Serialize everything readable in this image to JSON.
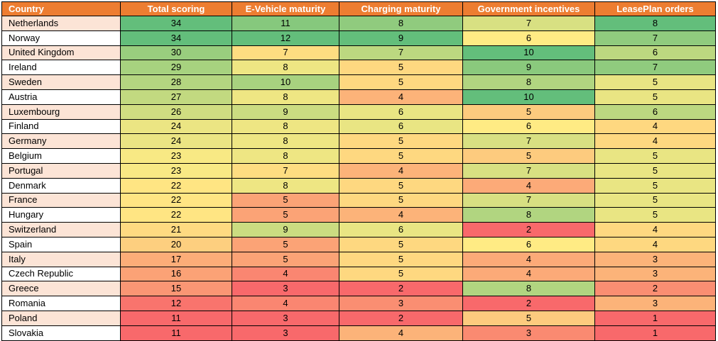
{
  "chart_data": {
    "type": "table",
    "columns": [
      "Country",
      "Total scoring",
      "E-Vehicle maturity",
      "Charging maturity",
      "Government incentives",
      "LeasePlan orders"
    ],
    "rows": [
      [
        "Netherlands",
        34,
        11,
        8,
        7,
        8
      ],
      [
        "Norway",
        34,
        12,
        9,
        6,
        7
      ],
      [
        "United Kingdom",
        30,
        7,
        7,
        10,
        6
      ],
      [
        "Ireland",
        29,
        8,
        5,
        9,
        7
      ],
      [
        "Sweden",
        28,
        10,
        5,
        8,
        5
      ],
      [
        "Austria",
        27,
        8,
        4,
        10,
        5
      ],
      [
        "Luxembourg",
        26,
        9,
        6,
        5,
        6
      ],
      [
        "Finland",
        24,
        8,
        6,
        6,
        4
      ],
      [
        "Germany",
        24,
        8,
        5,
        7,
        4
      ],
      [
        "Belgium",
        23,
        8,
        5,
        5,
        5
      ],
      [
        "Portugal",
        23,
        7,
        4,
        7,
        5
      ],
      [
        "Denmark",
        22,
        8,
        5,
        4,
        5
      ],
      [
        "France",
        22,
        5,
        5,
        7,
        5
      ],
      [
        "Hungary",
        22,
        5,
        4,
        8,
        5
      ],
      [
        "Switzerland",
        21,
        9,
        6,
        2,
        4
      ],
      [
        "Spain",
        20,
        5,
        5,
        6,
        4
      ],
      [
        "Italy",
        17,
        5,
        5,
        4,
        3
      ],
      [
        "Czech Republic",
        16,
        4,
        5,
        4,
        3
      ],
      [
        "Greece",
        15,
        3,
        2,
        8,
        2
      ],
      [
        "Romania",
        12,
        4,
        3,
        2,
        3
      ],
      [
        "Poland",
        11,
        3,
        2,
        5,
        1
      ],
      [
        "Slovakia",
        11,
        3,
        4,
        3,
        1
      ]
    ],
    "colors": {
      "header_bg": "#ED7D31",
      "header_text": "#FFFFFF",
      "country_shade_a": "#FCE4D6",
      "country_shade_b": "#FFFFFF",
      "scale_low": "#F8696B",
      "scale_mid": "#FFEB84",
      "scale_high": "#63BE7B"
    }
  }
}
